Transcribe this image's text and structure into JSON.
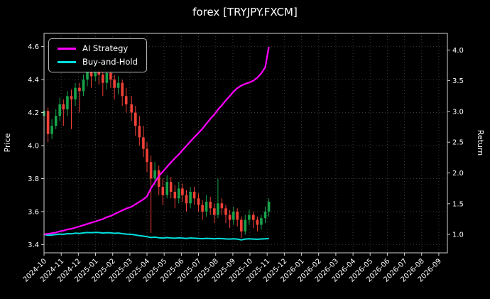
{
  "figure": {
    "background": "#000000",
    "text_color": "#ffffff"
  },
  "chart_data": {
    "type": "candlestick+line",
    "title": "forex [TRYJPY.FXCM]",
    "ylabel_left": "Price",
    "ylabel_right": "Return",
    "grid": "dotted",
    "legend_position": "upper-left",
    "x_tick_labels": [
      "2024-10",
      "2024-11",
      "2024-12",
      "2025-01",
      "2025-02",
      "2025-03",
      "2025-04",
      "2025-05",
      "2025-06",
      "2025-07",
      "2025-08",
      "2025-09",
      "2025-10",
      "2025-11",
      "2025-12",
      "2026-01",
      "2026-02",
      "2026-03",
      "2026-04",
      "2026-05",
      "2026-06",
      "2026-07",
      "2026-08",
      "2026-09"
    ],
    "left_ticks": [
      "3.4",
      "3.6",
      "3.8",
      "4.0",
      "4.2",
      "4.4",
      "4.6"
    ],
    "right_ticks": [
      "1.0",
      "1.5",
      "2.0",
      "2.5",
      "3.0",
      "3.5",
      "4.0"
    ],
    "ylim_price": [
      3.35,
      4.68
    ],
    "ylim_return": [
      0.7,
      4.27
    ],
    "xlim_months": [
      0,
      23.5
    ],
    "colors": {
      "up": "#17a24a",
      "down": "#f04137",
      "ai": "#ff00ff",
      "bh": "#00e0e0",
      "grid": "#3a3a3a",
      "spine": "#cfcfcf"
    },
    "legend": [
      {
        "label": "AI Strategy",
        "color": "#ff00ff"
      },
      {
        "label": "Buy-and-Hold",
        "color": "#00e0e0"
      }
    ],
    "dates": [
      "2024-10-01",
      "2024-10-08",
      "2024-10-15",
      "2024-10-22",
      "2024-10-29",
      "2024-11-05",
      "2024-11-12",
      "2024-11-19",
      "2024-11-26",
      "2024-12-03",
      "2024-12-10",
      "2024-12-17",
      "2024-12-24",
      "2024-12-31",
      "2025-01-07",
      "2025-01-14",
      "2025-01-21",
      "2025-01-28",
      "2025-02-04",
      "2025-02-11",
      "2025-02-18",
      "2025-02-25",
      "2025-03-04",
      "2025-03-11",
      "2025-03-18",
      "2025-03-25",
      "2025-04-01",
      "2025-04-08",
      "2025-04-15",
      "2025-04-22",
      "2025-04-29",
      "2025-05-06",
      "2025-05-13",
      "2025-05-20",
      "2025-05-27",
      "2025-06-03",
      "2025-06-10",
      "2025-06-17",
      "2025-06-24",
      "2025-07-01",
      "2025-07-08",
      "2025-07-15",
      "2025-07-22",
      "2025-07-29",
      "2025-08-05",
      "2025-08-12",
      "2025-08-19",
      "2025-08-26",
      "2025-09-02",
      "2025-09-09",
      "2025-09-16",
      "2025-09-23",
      "2025-09-30",
      "2025-10-07",
      "2025-10-14",
      "2025-10-21",
      "2025-10-28",
      "2025-11-04"
    ],
    "ohlc": [
      [
        4.18,
        4.24,
        4.14,
        4.21
      ],
      [
        4.21,
        4.23,
        4.02,
        4.07
      ],
      [
        4.07,
        4.16,
        4.04,
        4.12
      ],
      [
        4.12,
        4.22,
        4.1,
        4.18
      ],
      [
        4.18,
        4.29,
        4.15,
        4.25
      ],
      [
        4.25,
        4.28,
        4.12,
        4.22
      ],
      [
        4.22,
        4.33,
        4.18,
        4.3
      ],
      [
        4.3,
        4.34,
        4.1,
        4.28
      ],
      [
        4.28,
        4.38,
        4.24,
        4.35
      ],
      [
        4.35,
        4.38,
        4.2,
        4.33
      ],
      [
        4.33,
        4.43,
        4.3,
        4.4
      ],
      [
        4.4,
        4.5,
        4.36,
        4.45
      ],
      [
        4.45,
        4.48,
        4.35,
        4.42
      ],
      [
        4.42,
        4.5,
        4.39,
        4.46
      ],
      [
        4.46,
        4.49,
        4.37,
        4.43
      ],
      [
        4.43,
        4.46,
        4.3,
        4.38
      ],
      [
        4.38,
        4.47,
        4.34,
        4.44
      ],
      [
        4.44,
        4.48,
        4.35,
        4.4
      ],
      [
        4.4,
        4.43,
        4.28,
        4.35
      ],
      [
        4.35,
        4.42,
        4.31,
        4.38
      ],
      [
        4.38,
        4.4,
        4.24,
        4.3
      ],
      [
        4.3,
        4.35,
        4.2,
        4.25
      ],
      [
        4.25,
        4.3,
        4.15,
        4.2
      ],
      [
        4.2,
        4.24,
        4.06,
        4.12
      ],
      [
        4.12,
        4.18,
        4.0,
        4.05
      ],
      [
        4.05,
        4.12,
        3.93,
        3.98
      ],
      [
        3.98,
        4.02,
        3.84,
        3.9
      ],
      [
        3.9,
        3.94,
        3.47,
        3.8
      ],
      [
        3.8,
        3.9,
        3.76,
        3.85
      ],
      [
        3.85,
        3.88,
        3.7,
        3.75
      ],
      [
        3.75,
        3.8,
        3.64,
        3.7
      ],
      [
        3.7,
        3.82,
        3.68,
        3.78
      ],
      [
        3.78,
        3.81,
        3.68,
        3.72
      ],
      [
        3.72,
        3.76,
        3.62,
        3.68
      ],
      [
        3.68,
        3.78,
        3.65,
        3.74
      ],
      [
        3.74,
        3.77,
        3.66,
        3.7
      ],
      [
        3.7,
        3.73,
        3.6,
        3.65
      ],
      [
        3.65,
        3.75,
        3.62,
        3.72
      ],
      [
        3.72,
        3.75,
        3.64,
        3.68
      ],
      [
        3.68,
        3.71,
        3.6,
        3.64
      ],
      [
        3.64,
        3.67,
        3.55,
        3.6
      ],
      [
        3.6,
        3.7,
        3.57,
        3.66
      ],
      [
        3.66,
        3.69,
        3.58,
        3.62
      ],
      [
        3.62,
        3.65,
        3.53,
        3.58
      ],
      [
        3.58,
        3.8,
        3.56,
        3.65
      ],
      [
        3.65,
        3.68,
        3.58,
        3.62
      ],
      [
        3.62,
        3.64,
        3.53,
        3.58
      ],
      [
        3.58,
        3.61,
        3.5,
        3.55
      ],
      [
        3.55,
        3.63,
        3.52,
        3.6
      ],
      [
        3.6,
        3.62,
        3.51,
        3.55
      ],
      [
        3.55,
        3.57,
        3.44,
        3.48
      ],
      [
        3.48,
        3.58,
        3.46,
        3.55
      ],
      [
        3.55,
        3.61,
        3.52,
        3.58
      ],
      [
        3.58,
        3.6,
        3.5,
        3.55
      ],
      [
        3.55,
        3.57,
        3.48,
        3.52
      ],
      [
        3.52,
        3.58,
        3.49,
        3.56
      ],
      [
        3.56,
        3.63,
        3.53,
        3.6
      ],
      [
        3.6,
        3.68,
        3.57,
        3.66
      ]
    ],
    "series": [
      {
        "name": "AI Strategy",
        "axis": "return",
        "values": [
          1.0,
          1.01,
          1.02,
          1.03,
          1.05,
          1.06,
          1.08,
          1.09,
          1.11,
          1.13,
          1.15,
          1.17,
          1.19,
          1.21,
          1.23,
          1.25,
          1.28,
          1.3,
          1.33,
          1.36,
          1.39,
          1.42,
          1.45,
          1.49,
          1.53,
          1.57,
          1.62,
          1.75,
          1.85,
          1.95,
          2.02,
          2.1,
          2.17,
          2.24,
          2.3,
          2.37,
          2.44,
          2.51,
          2.58,
          2.65,
          2.72,
          2.8,
          2.88,
          2.95,
          3.03,
          3.1,
          3.18,
          3.25,
          3.32,
          3.38,
          3.42,
          3.45,
          3.47,
          3.5,
          3.55,
          3.62,
          3.72,
          4.05
        ]
      },
      {
        "name": "Buy-and-Hold",
        "axis": "return",
        "values": [
          1.0,
          0.985,
          0.99,
          0.998,
          1.005,
          1.002,
          1.012,
          1.01,
          1.02,
          1.015,
          1.025,
          1.03,
          1.028,
          1.032,
          1.03,
          1.022,
          1.028,
          1.025,
          1.018,
          1.022,
          1.012,
          1.005,
          1.0,
          0.99,
          0.98,
          0.972,
          0.962,
          0.95,
          0.955,
          0.945,
          0.94,
          0.948,
          0.942,
          0.938,
          0.944,
          0.94,
          0.935,
          0.942,
          0.938,
          0.934,
          0.93,
          0.936,
          0.932,
          0.928,
          0.935,
          0.931,
          0.927,
          0.924,
          0.929,
          0.924,
          0.91,
          0.924,
          0.928,
          0.924,
          0.921,
          0.925,
          0.929,
          0.934
        ]
      }
    ]
  }
}
